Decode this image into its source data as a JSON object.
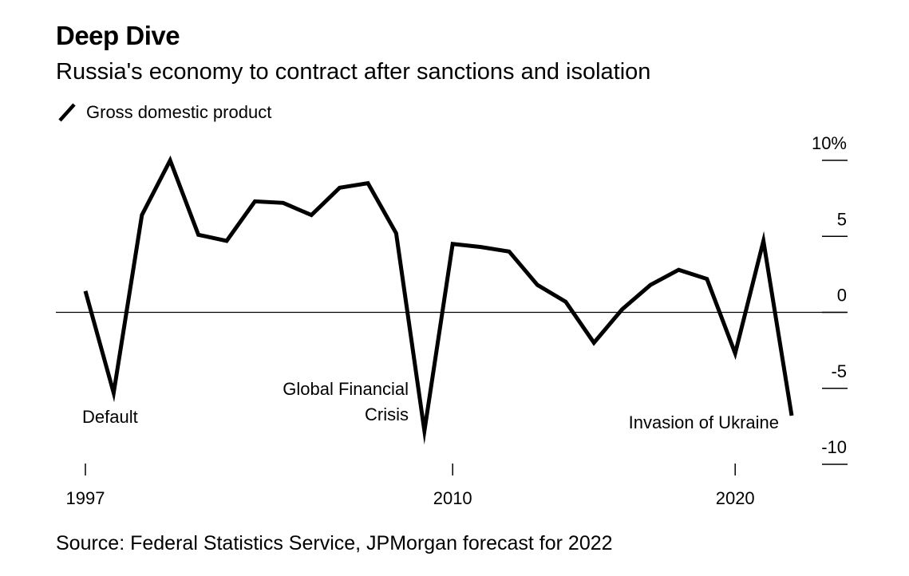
{
  "header": {
    "title": "Deep Dive",
    "subtitle": "Russia's economy to contract after sanctions and isolation"
  },
  "legend": {
    "label": "Gross domestic product",
    "icon": "diagonal-line-icon"
  },
  "footer": {
    "source": "Source: Federal Statistics Service, JPMorgan forecast for 2022"
  },
  "colors": {
    "series": "#000000",
    "zero_line": "#000000",
    "background": "#ffffff"
  },
  "chart_data": {
    "type": "line",
    "title": "Russia's economy to contract after sanctions and isolation",
    "xlabel": "",
    "ylabel": "",
    "xlim": [
      1997,
      2022
    ],
    "ylim": [
      -10,
      10
    ],
    "x_ticks": [
      {
        "value": 1997,
        "label": "1997"
      },
      {
        "value": 2010,
        "label": "2010"
      },
      {
        "value": 2020,
        "label": "2020"
      }
    ],
    "y_ticks": [
      {
        "value": 10,
        "label": "10%"
      },
      {
        "value": 5,
        "label": "5"
      },
      {
        "value": 0,
        "label": "0"
      },
      {
        "value": -5,
        "label": "-5"
      },
      {
        "value": -10,
        "label": "-10"
      }
    ],
    "series": [
      {
        "name": "Gross domestic product",
        "x": [
          1997,
          1998,
          1999,
          2000,
          2001,
          2002,
          2003,
          2004,
          2005,
          2006,
          2007,
          2008,
          2009,
          2010,
          2011,
          2012,
          2013,
          2014,
          2015,
          2016,
          2017,
          2018,
          2019,
          2020,
          2021,
          2022
        ],
        "values": [
          1.4,
          -5.3,
          6.4,
          10.0,
          5.1,
          4.7,
          7.3,
          7.2,
          6.4,
          8.2,
          8.5,
          5.2,
          -7.8,
          4.5,
          4.3,
          4.0,
          1.8,
          0.7,
          -2.0,
          0.2,
          1.8,
          2.8,
          2.2,
          -2.7,
          4.7,
          -6.8
        ]
      }
    ],
    "annotations": [
      {
        "x": 1998,
        "text_lines": [
          "Default"
        ]
      },
      {
        "x": 2009,
        "text_lines": [
          "Global Financial",
          "Crisis"
        ]
      },
      {
        "x": 2022,
        "text_lines": [
          "Invasion of Ukraine"
        ]
      }
    ],
    "grid": false,
    "zero_line": true,
    "legend_position": "top-left"
  }
}
